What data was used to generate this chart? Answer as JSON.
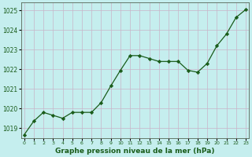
{
  "x": [
    0,
    1,
    2,
    3,
    4,
    5,
    6,
    7,
    8,
    9,
    10,
    11,
    12,
    13,
    14,
    15,
    16,
    17,
    18,
    19,
    20,
    21,
    22,
    23
  ],
  "y": [
    1018.65,
    1019.35,
    1019.8,
    1019.65,
    1019.5,
    1019.8,
    1019.8,
    1019.8,
    1020.3,
    1021.15,
    1021.95,
    1022.7,
    1022.7,
    1022.55,
    1022.4,
    1022.4,
    1022.4,
    1021.95,
    1021.85,
    1022.3,
    1023.2,
    1023.8,
    1024.65,
    1025.05
  ],
  "line_color": "#1a5c1a",
  "marker": "D",
  "marker_size": 2.2,
  "bg_color": "#c5eeee",
  "grid_color": "#c8b4c8",
  "xlabel": "Graphe pression niveau de la mer (hPa)",
  "xlabel_color": "#1a5c1a",
  "tick_label_color": "#1a5c1a",
  "ylim": [
    1018.5,
    1025.4
  ],
  "yticks": [
    1019,
    1020,
    1021,
    1022,
    1023,
    1024,
    1025
  ],
  "xticks": [
    0,
    1,
    2,
    3,
    4,
    5,
    6,
    7,
    8,
    9,
    10,
    11,
    12,
    13,
    14,
    15,
    16,
    17,
    18,
    19,
    20,
    21,
    22,
    23
  ],
  "xtick_labels": [
    "0",
    "1",
    "2",
    "3",
    "4",
    "5",
    "6",
    "7",
    "8",
    "9",
    "10",
    "11",
    "12",
    "13",
    "14",
    "15",
    "16",
    "17",
    "18",
    "19",
    "20",
    "21",
    "22",
    "23"
  ]
}
